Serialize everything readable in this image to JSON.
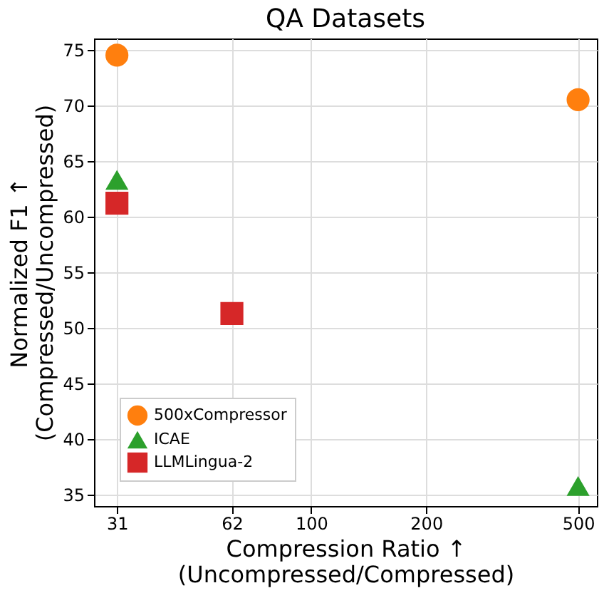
{
  "chart_data": {
    "type": "scatter",
    "title": "QA Datasets",
    "xlabel": "Compression Ratio ↑\n(Uncompressed/Compressed)",
    "ylabel": "Normalized F1 ↑\n(Compressed/Uncompressed)",
    "log": "x",
    "xlim": [
      27,
      560
    ],
    "xticks": [
      31,
      62,
      100,
      200,
      500
    ],
    "ylim": [
      34,
      76
    ],
    "yticks": [
      35,
      40,
      45,
      50,
      55,
      60,
      65,
      70,
      75
    ],
    "grid": true,
    "legend": "bottom left",
    "series": [
      {
        "name": "500xCompressor",
        "color": "#ff7f0e",
        "marker": "circle",
        "x": [
          31,
          500
        ],
        "values": [
          74.5,
          70.5
        ]
      },
      {
        "name": "ICAE",
        "color": "#2ca02c",
        "marker": "triangle",
        "x": [
          31,
          500
        ],
        "values": [
          63.3,
          35.8
        ]
      },
      {
        "name": "LLMLingua-2",
        "color": "#d62728",
        "marker": "square",
        "x": [
          31,
          62
        ],
        "values": [
          61.2,
          51.3
        ]
      }
    ]
  }
}
